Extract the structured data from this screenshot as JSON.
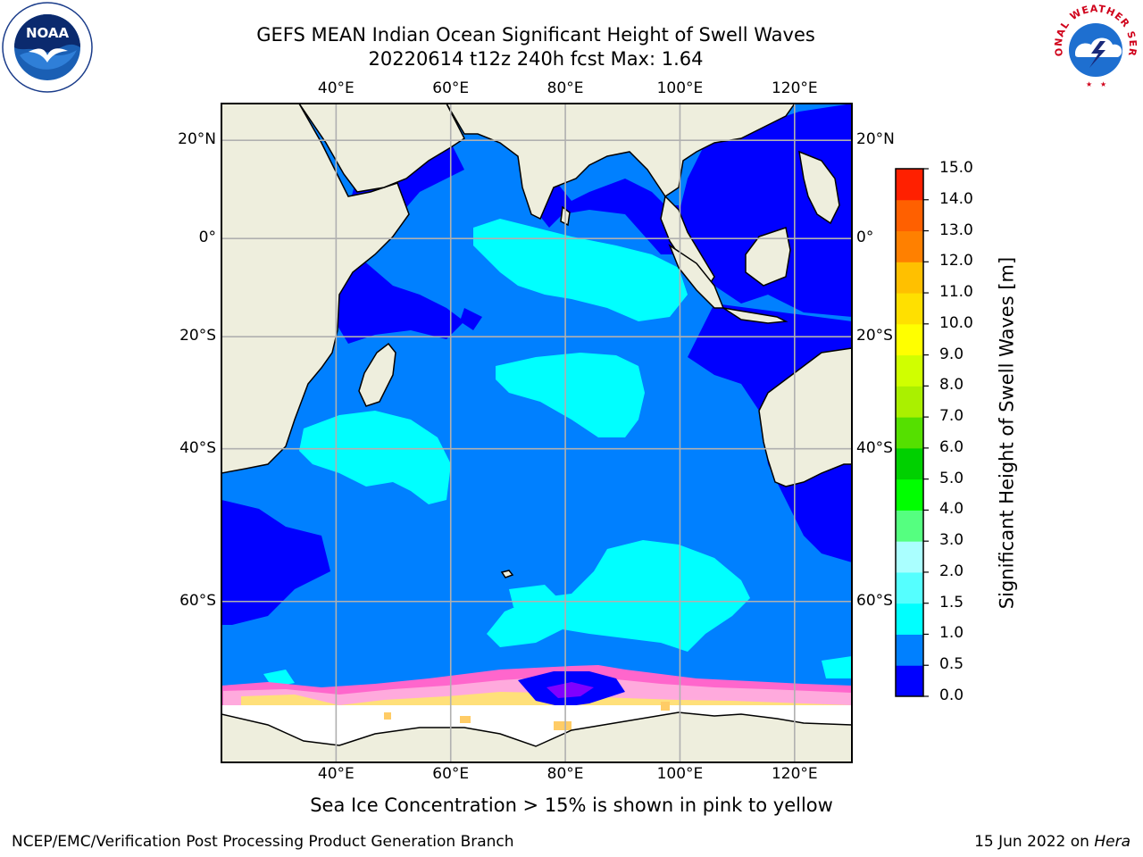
{
  "title_line1": "GEFS MEAN Indian Ocean Significant Height of Swell Waves",
  "title_line2": "20220614 t12z 240h fcst   Max: 1.64",
  "map": {
    "lon_range": [
      20,
      130
    ],
    "lat_range": [
      -73,
      27
    ],
    "lon_ticks": [
      {
        "value": 40,
        "label": "40°E"
      },
      {
        "value": 60,
        "label": "60°E"
      },
      {
        "value": 80,
        "label": "80°E"
      },
      {
        "value": 100,
        "label": "100°E"
      },
      {
        "value": 120,
        "label": "120°E"
      }
    ],
    "lat_ticks": [
      {
        "value": 20,
        "label": "20°N"
      },
      {
        "value": 0,
        "label": "0°"
      },
      {
        "value": -20,
        "label": "20°S"
      },
      {
        "value": -40,
        "label": "40°S"
      },
      {
        "value": -60,
        "label": "60°S"
      }
    ],
    "land_color": "#eeeedd",
    "ocean_base_color": "#0080ff",
    "grid": true
  },
  "colorbar": {
    "label": "Significant Height of Swell Waves [m]",
    "ticks": [
      "0.0",
      "0.5",
      "1.0",
      "1.5",
      "2.0",
      "3.0",
      "4.0",
      "5.0",
      "6.0",
      "7.0",
      "8.0",
      "9.0",
      "10.0",
      "11.0",
      "12.0",
      "13.0",
      "14.0",
      "15.0"
    ],
    "colors": [
      "#0000ff",
      "#0080ff",
      "#00ffff",
      "#55ffff",
      "#aaffff",
      "#55ff80",
      "#00ff00",
      "#00d000",
      "#55e000",
      "#aaf000",
      "#d0ff00",
      "#ffff00",
      "#ffe000",
      "#ffc000",
      "#ff8000",
      "#ff6000",
      "#ff2000"
    ]
  },
  "footnote": "Sea Ice Concentration > 15% is shown in pink to yellow",
  "credit": "NCEP/EMC/Verification Post Processing Product Generation Branch",
  "date_text": "15 Jun 2022 on ",
  "date_host": "Hera",
  "logos": {
    "noaa": "NOAA",
    "nws": "NATIONAL WEATHER SERVICE"
  }
}
